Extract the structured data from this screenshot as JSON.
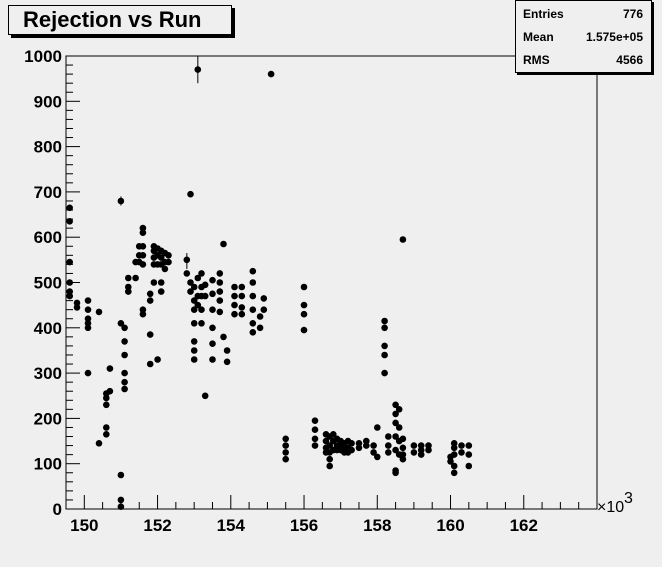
{
  "title": "Rejection vs Run",
  "stats": [
    {
      "label": "Entries",
      "value": "776"
    },
    {
      "label": "Mean",
      "value": "1.575e+05"
    },
    {
      "label": "RMS",
      "value": "4566"
    }
  ],
  "chart_data": {
    "type": "scatter",
    "title": "Rejection vs Run",
    "xlabel": "",
    "ylabel": "",
    "xlim": [
      149.5,
      164
    ],
    "ylim": [
      0,
      1000
    ],
    "x_multiplier_label": "×10",
    "x_multiplier_exponent": "3",
    "xticks": [
      150,
      152,
      154,
      156,
      158,
      160,
      162
    ],
    "yticks": [
      0,
      100,
      200,
      300,
      400,
      500,
      600,
      700,
      800,
      900,
      1000
    ],
    "marker_color": "#000000",
    "grid": false,
    "points": [
      [
        149.6,
        665
      ],
      [
        149.6,
        635
      ],
      [
        149.6,
        545
      ],
      [
        149.6,
        500
      ],
      [
        149.6,
        480
      ],
      [
        149.6,
        470
      ],
      [
        149.8,
        455
      ],
      [
        149.8,
        445
      ],
      [
        150.1,
        460
      ],
      [
        150.1,
        440
      ],
      [
        150.1,
        420
      ],
      [
        150.1,
        410
      ],
      [
        150.1,
        400
      ],
      [
        150.1,
        300
      ],
      [
        150.4,
        435
      ],
      [
        150.4,
        145
      ],
      [
        150.6,
        255
      ],
      [
        150.6,
        245
      ],
      [
        150.6,
        230
      ],
      [
        150.6,
        180
      ],
      [
        150.6,
        165
      ],
      [
        150.7,
        310
      ],
      [
        150.7,
        260
      ],
      [
        151.0,
        680
      ],
      [
        151.0,
        410
      ],
      [
        151.0,
        75
      ],
      [
        151.0,
        20
      ],
      [
        151.0,
        5
      ],
      [
        151.1,
        400
      ],
      [
        151.1,
        370
      ],
      [
        151.1,
        340
      ],
      [
        151.1,
        300
      ],
      [
        151.1,
        280
      ],
      [
        151.1,
        265
      ],
      [
        151.2,
        510
      ],
      [
        151.2,
        490
      ],
      [
        151.2,
        480
      ],
      [
        151.4,
        545
      ],
      [
        151.4,
        510
      ],
      [
        151.5,
        580
      ],
      [
        151.5,
        560
      ],
      [
        151.5,
        545
      ],
      [
        151.6,
        620
      ],
      [
        151.6,
        610
      ],
      [
        151.6,
        580
      ],
      [
        151.6,
        560
      ],
      [
        151.6,
        540
      ],
      [
        151.6,
        440
      ],
      [
        151.6,
        430
      ],
      [
        151.8,
        475
      ],
      [
        151.8,
        460
      ],
      [
        151.8,
        385
      ],
      [
        151.8,
        320
      ],
      [
        151.9,
        580
      ],
      [
        151.9,
        570
      ],
      [
        151.9,
        555
      ],
      [
        151.9,
        540
      ],
      [
        151.9,
        500
      ],
      [
        152.0,
        575
      ],
      [
        152.0,
        560
      ],
      [
        152.0,
        540
      ],
      [
        152.0,
        330
      ],
      [
        152.1,
        570
      ],
      [
        152.1,
        555
      ],
      [
        152.1,
        540
      ],
      [
        152.1,
        500
      ],
      [
        152.1,
        480
      ],
      [
        152.2,
        565
      ],
      [
        152.2,
        545
      ],
      [
        152.2,
        530
      ],
      [
        152.3,
        560
      ],
      [
        152.3,
        545
      ],
      [
        152.8,
        550
      ],
      [
        152.8,
        520
      ],
      [
        152.9,
        695
      ],
      [
        152.9,
        500
      ],
      [
        152.9,
        480
      ],
      [
        153.0,
        490
      ],
      [
        153.0,
        460
      ],
      [
        153.0,
        440
      ],
      [
        153.0,
        410
      ],
      [
        153.0,
        370
      ],
      [
        153.0,
        350
      ],
      [
        153.0,
        330
      ],
      [
        153.1,
        970
      ],
      [
        153.1,
        510
      ],
      [
        153.1,
        470
      ],
      [
        153.1,
        450
      ],
      [
        153.2,
        520
      ],
      [
        153.2,
        490
      ],
      [
        153.2,
        470
      ],
      [
        153.2,
        440
      ],
      [
        153.2,
        410
      ],
      [
        153.3,
        495
      ],
      [
        153.3,
        470
      ],
      [
        153.3,
        250
      ],
      [
        153.5,
        505
      ],
      [
        153.5,
        475
      ],
      [
        153.5,
        440
      ],
      [
        153.5,
        400
      ],
      [
        153.5,
        365
      ],
      [
        153.5,
        330
      ],
      [
        153.7,
        520
      ],
      [
        153.7,
        500
      ],
      [
        153.7,
        480
      ],
      [
        153.7,
        460
      ],
      [
        153.7,
        435
      ],
      [
        153.8,
        585
      ],
      [
        153.8,
        380
      ],
      [
        153.9,
        350
      ],
      [
        153.9,
        325
      ],
      [
        154.1,
        490
      ],
      [
        154.1,
        470
      ],
      [
        154.1,
        450
      ],
      [
        154.1,
        430
      ],
      [
        154.3,
        490
      ],
      [
        154.3,
        470
      ],
      [
        154.3,
        445
      ],
      [
        154.3,
        430
      ],
      [
        154.6,
        525
      ],
      [
        154.6,
        500
      ],
      [
        154.6,
        470
      ],
      [
        154.6,
        440
      ],
      [
        154.6,
        410
      ],
      [
        154.6,
        390
      ],
      [
        154.8,
        425
      ],
      [
        154.8,
        400
      ],
      [
        154.9,
        465
      ],
      [
        154.9,
        440
      ],
      [
        155.1,
        960
      ],
      [
        155.5,
        155
      ],
      [
        155.5,
        140
      ],
      [
        155.5,
        125
      ],
      [
        155.5,
        110
      ],
      [
        156.0,
        490
      ],
      [
        156.0,
        450
      ],
      [
        156.0,
        430
      ],
      [
        156.0,
        395
      ],
      [
        156.3,
        195
      ],
      [
        156.3,
        175
      ],
      [
        156.3,
        155
      ],
      [
        156.3,
        140
      ],
      [
        156.6,
        165
      ],
      [
        156.6,
        150
      ],
      [
        156.6,
        135
      ],
      [
        156.6,
        125
      ],
      [
        156.7,
        160
      ],
      [
        156.7,
        140
      ],
      [
        156.7,
        125
      ],
      [
        156.7,
        110
      ],
      [
        156.7,
        95
      ],
      [
        156.8,
        165
      ],
      [
        156.8,
        150
      ],
      [
        156.8,
        130
      ],
      [
        156.9,
        155
      ],
      [
        156.9,
        140
      ],
      [
        156.9,
        130
      ],
      [
        157.0,
        150
      ],
      [
        157.0,
        140
      ],
      [
        157.0,
        130
      ],
      [
        157.1,
        145
      ],
      [
        157.1,
        135
      ],
      [
        157.1,
        125
      ],
      [
        157.2,
        150
      ],
      [
        157.2,
        135
      ],
      [
        157.2,
        125
      ],
      [
        157.3,
        145
      ],
      [
        157.3,
        130
      ],
      [
        157.5,
        145
      ],
      [
        157.5,
        135
      ],
      [
        157.7,
        150
      ],
      [
        157.7,
        140
      ],
      [
        157.9,
        140
      ],
      [
        157.9,
        125
      ],
      [
        158.0,
        115
      ],
      [
        158.0,
        180
      ],
      [
        158.2,
        415
      ],
      [
        158.2,
        400
      ],
      [
        158.2,
        360
      ],
      [
        158.2,
        340
      ],
      [
        158.2,
        300
      ],
      [
        158.3,
        160
      ],
      [
        158.3,
        140
      ],
      [
        158.3,
        125
      ],
      [
        158.5,
        230
      ],
      [
        158.5,
        210
      ],
      [
        158.5,
        190
      ],
      [
        158.5,
        160
      ],
      [
        158.5,
        130
      ],
      [
        158.5,
        85
      ],
      [
        158.5,
        80
      ],
      [
        158.6,
        220
      ],
      [
        158.6,
        180
      ],
      [
        158.6,
        150
      ],
      [
        158.6,
        120
      ],
      [
        158.7,
        595
      ],
      [
        158.7,
        155
      ],
      [
        158.7,
        135
      ],
      [
        158.7,
        120
      ],
      [
        158.7,
        110
      ],
      [
        159.0,
        140
      ],
      [
        159.0,
        125
      ],
      [
        159.2,
        140
      ],
      [
        159.2,
        130
      ],
      [
        159.2,
        120
      ],
      [
        159.4,
        140
      ],
      [
        159.4,
        130
      ],
      [
        160.0,
        115
      ],
      [
        160.0,
        105
      ],
      [
        160.1,
        145
      ],
      [
        160.1,
        135
      ],
      [
        160.1,
        120
      ],
      [
        160.1,
        95
      ],
      [
        160.1,
        80
      ],
      [
        160.3,
        140
      ],
      [
        160.3,
        125
      ],
      [
        160.5,
        140
      ],
      [
        160.5,
        120
      ],
      [
        160.5,
        95
      ]
    ],
    "error_bars": [
      {
        "x": 153.1,
        "y": 970,
        "low": 940,
        "high": 1000
      },
      {
        "x": 152.8,
        "y": 550,
        "low": 530,
        "high": 565
      },
      {
        "x": 151.0,
        "y": 680,
        "low": 670,
        "high": 690
      }
    ]
  }
}
